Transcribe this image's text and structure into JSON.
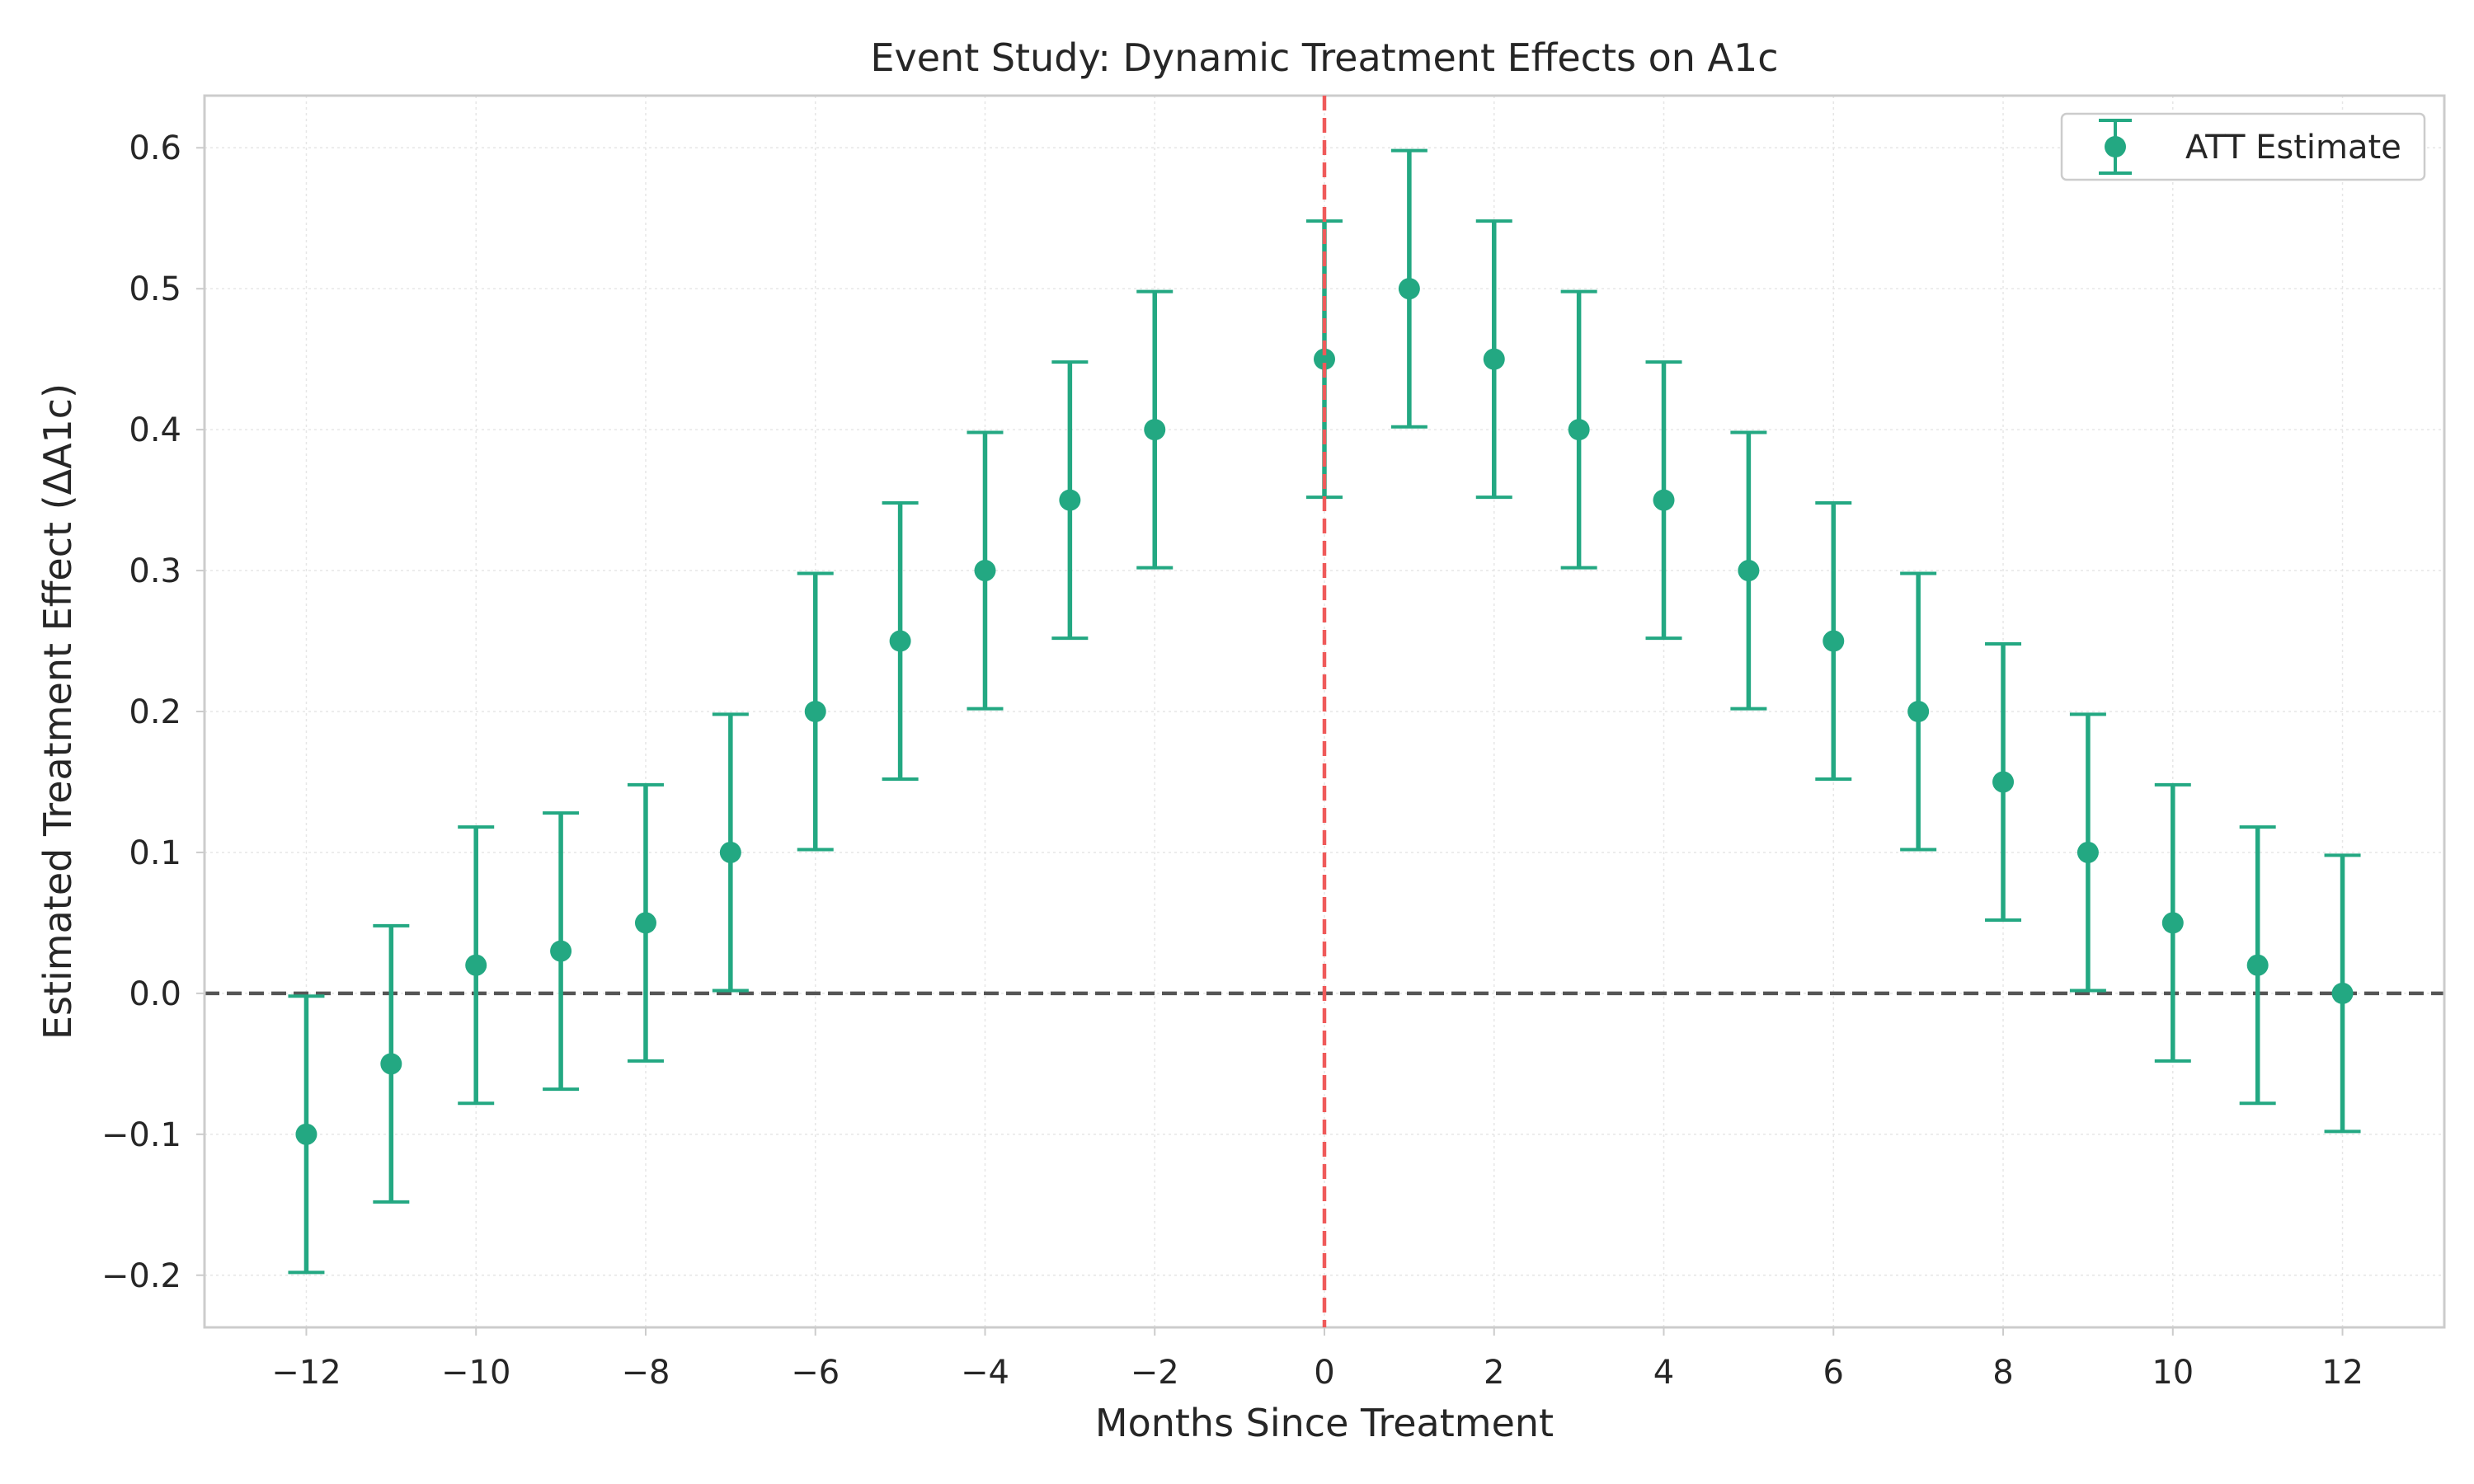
{
  "chart_data": {
    "type": "scatter",
    "title": "Event Study: Dynamic Treatment Effects on A1c",
    "xlabel": "Months Since Treatment",
    "ylabel": "Estimated Treatment Effect (ΔA1c)",
    "xlim": [
      -13.2,
      13.2
    ],
    "ylim": [
      -0.237,
      0.637
    ],
    "xticks": [
      -12,
      -10,
      -8,
      -6,
      -4,
      -2,
      0,
      2,
      4,
      6,
      8,
      10,
      12
    ],
    "xtick_labels": [
      "−12",
      "−10",
      "−8",
      "−6",
      "−4",
      "−2",
      "0",
      "2",
      "4",
      "6",
      "8",
      "10",
      "12"
    ],
    "yticks": [
      -0.2,
      -0.1,
      0.0,
      0.1,
      0.2,
      0.3,
      0.4,
      0.5,
      0.6
    ],
    "ytick_labels": [
      "−0.2",
      "−0.1",
      "0.0",
      "0.1",
      "0.2",
      "0.3",
      "0.4",
      "0.5",
      "0.6"
    ],
    "grid": true,
    "legend": {
      "placement": "top-right",
      "entries": [
        "ATT Estimate"
      ]
    },
    "reference_lines": [
      {
        "orientation": "horizontal",
        "value": 0,
        "style": "dashed",
        "color": "#555555"
      },
      {
        "orientation": "vertical",
        "value": 0,
        "style": "dashed",
        "color": "#ef5a5a"
      }
    ],
    "series": [
      {
        "name": "ATT Estimate",
        "color": "#23a882",
        "x": [
          -12,
          -11,
          -10,
          -9,
          -8,
          -7,
          -6,
          -5,
          -4,
          -3,
          -2,
          0,
          1,
          2,
          3,
          4,
          5,
          6,
          7,
          8,
          9,
          10,
          11,
          12
        ],
        "y": [
          -0.1,
          -0.05,
          0.02,
          0.03,
          0.05,
          0.1,
          0.2,
          0.25,
          0.3,
          0.35,
          0.4,
          0.45,
          0.5,
          0.45,
          0.4,
          0.35,
          0.3,
          0.25,
          0.2,
          0.15,
          0.1,
          0.05,
          0.02,
          0.0
        ],
        "ci_lower": [
          -0.198,
          -0.148,
          -0.078,
          -0.068,
          -0.048,
          0.002,
          0.102,
          0.152,
          0.202,
          0.252,
          0.302,
          0.352,
          0.402,
          0.352,
          0.302,
          0.252,
          0.202,
          0.152,
          0.102,
          0.052,
          0.002,
          -0.048,
          -0.078,
          -0.098
        ],
        "ci_upper": [
          -0.002,
          0.048,
          0.118,
          0.128,
          0.148,
          0.198,
          0.298,
          0.348,
          0.398,
          0.448,
          0.498,
          0.548,
          0.598,
          0.548,
          0.498,
          0.448,
          0.398,
          0.348,
          0.298,
          0.248,
          0.198,
          0.148,
          0.118,
          0.098
        ]
      }
    ]
  }
}
